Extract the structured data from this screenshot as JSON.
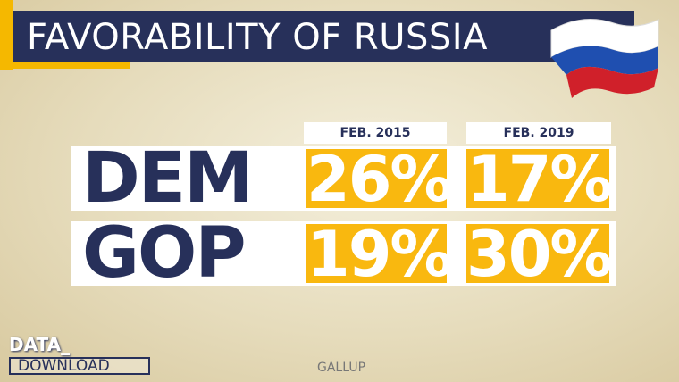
{
  "header": {
    "title": "FAVORABILITY OF RUSSIA"
  },
  "table": {
    "columns": [
      "FEB. 2015",
      "FEB. 2019"
    ],
    "rows": [
      [
        "DEM",
        "26%",
        "17%"
      ],
      [
        "GOP",
        "19%",
        "30%"
      ]
    ]
  },
  "logo": {
    "line1": "DATA_",
    "line2": "DOWNLOAD"
  },
  "source": "GALLUP"
}
